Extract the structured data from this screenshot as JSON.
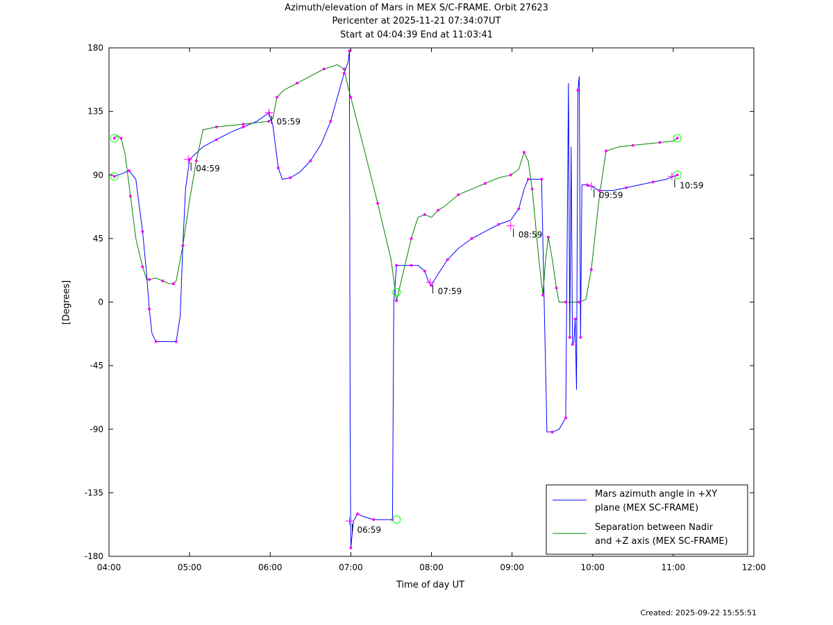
{
  "title": {
    "line1": "Azimuth/elevation of Mars in MEX S/C-FRAME.  Orbit 27623",
    "line2": "Pericenter at 2025-11-21 07:34:07UT",
    "line3": "Start at 04:04:39 End at 11:03:41"
  },
  "footer": {
    "created": "Created: 2025-09-22 15:55:51"
  },
  "colors": {
    "azimuth": "#0000ff",
    "separation": "#008000",
    "marker": "#ff00ff",
    "endpoint": "#00ff00"
  },
  "chart_data": {
    "type": "line",
    "xlabel": "Time of day UT",
    "ylabel": "[Degrees]",
    "xlim": [
      "04:00",
      "12:00"
    ],
    "ylim": [
      -180,
      180
    ],
    "x_ticks": [
      "04:00",
      "05:00",
      "06:00",
      "07:00",
      "08:00",
      "09:00",
      "10:00",
      "11:00",
      "12:00"
    ],
    "y_ticks": [
      "180",
      "135",
      "90",
      "45",
      "0",
      "-45",
      "-90",
      "-135",
      "-180"
    ],
    "grid": false,
    "legend_position": "bottom-right",
    "series": [
      {
        "name": "Mars azimuth angle in +XY plane (MEX SC-FRAME)",
        "legend_lines": [
          "Mars azimuth angle in +XY",
          "plane (MEX SC-FRAME)"
        ],
        "color": "#0000ff",
        "points": [
          [
            "04:04",
            89
          ],
          [
            "04:10",
            91
          ],
          [
            "04:15",
            93
          ],
          [
            "04:20",
            87
          ],
          [
            "04:25",
            50
          ],
          [
            "04:28",
            20
          ],
          [
            "04:30",
            -5
          ],
          [
            "04:32",
            -22
          ],
          [
            "04:35",
            -28
          ],
          [
            "04:45",
            -28
          ],
          [
            "04:50",
            -28
          ],
          [
            "04:53",
            -10
          ],
          [
            "04:55",
            40
          ],
          [
            "04:57",
            80
          ],
          [
            "05:00",
            101
          ],
          [
            "05:10",
            110
          ],
          [
            "05:20",
            115
          ],
          [
            "05:30",
            120
          ],
          [
            "05:40",
            124
          ],
          [
            "05:50",
            128
          ],
          [
            "05:59",
            134
          ],
          [
            "06:02",
            125
          ],
          [
            "06:06",
            95
          ],
          [
            "06:09",
            87
          ],
          [
            "06:15",
            88
          ],
          [
            "06:22",
            92
          ],
          [
            "06:30",
            100
          ],
          [
            "06:38",
            112
          ],
          [
            "06:45",
            128
          ],
          [
            "06:50",
            145
          ],
          [
            "06:55",
            162
          ],
          [
            "06:58",
            170
          ],
          [
            "06:59",
            178
          ],
          [
            "06:59:30",
            -88
          ],
          [
            "07:00",
            -174
          ],
          [
            "07:02",
            -155
          ],
          [
            "07:05",
            -150
          ],
          [
            "07:10",
            -152
          ],
          [
            "07:17",
            -154
          ],
          [
            "07:25",
            -154
          ],
          [
            "07:31",
            -154
          ],
          [
            "07:32",
            0
          ],
          [
            "07:34",
            26
          ],
          [
            "07:40",
            26
          ],
          [
            "07:45",
            26
          ],
          [
            "07:50",
            26
          ],
          [
            "07:55",
            22
          ],
          [
            "07:58",
            14
          ],
          [
            "08:00",
            12
          ],
          [
            "08:05",
            20
          ],
          [
            "08:12",
            30
          ],
          [
            "08:20",
            38
          ],
          [
            "08:30",
            45
          ],
          [
            "08:40",
            50
          ],
          [
            "08:50",
            55
          ],
          [
            "08:59",
            58
          ],
          [
            "09:05",
            66
          ],
          [
            "09:09",
            80
          ],
          [
            "09:12",
            87
          ],
          [
            "09:20",
            87
          ],
          [
            "09:22",
            87
          ],
          [
            "09:26",
            -92
          ],
          [
            "09:30",
            -92
          ],
          [
            "09:35",
            -90
          ],
          [
            "09:40",
            -82
          ],
          [
            "09:42",
            155
          ],
          [
            "09:43",
            -25
          ],
          [
            "09:44",
            110
          ],
          [
            "09:45",
            -30
          ],
          [
            "09:46",
            -28
          ],
          [
            "09:47",
            -12
          ],
          [
            "09:48",
            -62
          ],
          [
            "09:49",
            150
          ],
          [
            "09:50",
            160
          ],
          [
            "09:51",
            -25
          ],
          [
            "09:52",
            83
          ],
          [
            "09:56",
            83
          ],
          [
            "09:59",
            82
          ],
          [
            "10:05",
            79
          ],
          [
            "10:15",
            79
          ],
          [
            "10:25",
            81
          ],
          [
            "10:35",
            83
          ],
          [
            "10:45",
            85
          ],
          [
            "10:55",
            87
          ],
          [
            "11:03",
            90
          ]
        ]
      },
      {
        "name": "Separation between Nadir and +Z axis (MEX SC-FRAME)",
        "legend_lines": [
          "Separation between Nadir",
          "and +Z axis (MEX SC-FRAME)"
        ],
        "color": "#008000",
        "points": [
          [
            "04:04",
            116
          ],
          [
            "04:06",
            118
          ],
          [
            "04:09",
            116
          ],
          [
            "04:12",
            105
          ],
          [
            "04:16",
            75
          ],
          [
            "04:20",
            45
          ],
          [
            "04:25",
            25
          ],
          [
            "04:28",
            16
          ],
          [
            "04:30",
            16
          ],
          [
            "04:35",
            17
          ],
          [
            "04:40",
            15
          ],
          [
            "04:45",
            13
          ],
          [
            "04:48",
            13
          ],
          [
            "04:50",
            15
          ],
          [
            "04:55",
            40
          ],
          [
            "05:00",
            72
          ],
          [
            "05:05",
            100
          ],
          [
            "05:10",
            122
          ],
          [
            "05:20",
            124
          ],
          [
            "05:30",
            125
          ],
          [
            "05:40",
            126
          ],
          [
            "05:50",
            127
          ],
          [
            "05:59",
            128
          ],
          [
            "06:02",
            130
          ],
          [
            "06:05",
            145
          ],
          [
            "06:10",
            150
          ],
          [
            "06:20",
            155
          ],
          [
            "06:30",
            160
          ],
          [
            "06:40",
            165
          ],
          [
            "06:50",
            168
          ],
          [
            "06:55",
            165
          ],
          [
            "06:58",
            152
          ],
          [
            "07:00",
            145
          ],
          [
            "07:10",
            108
          ],
          [
            "07:20",
            70
          ],
          [
            "07:30",
            30
          ],
          [
            "07:34",
            1
          ],
          [
            "07:40",
            25
          ],
          [
            "07:45",
            45
          ],
          [
            "07:50",
            60
          ],
          [
            "07:55",
            62
          ],
          [
            "08:00",
            60
          ],
          [
            "08:05",
            65
          ],
          [
            "08:10",
            68
          ],
          [
            "08:20",
            76
          ],
          [
            "08:30",
            80
          ],
          [
            "08:40",
            84
          ],
          [
            "08:50",
            88
          ],
          [
            "08:59",
            90
          ],
          [
            "09:05",
            94
          ],
          [
            "09:09",
            106
          ],
          [
            "09:12",
            100
          ],
          [
            "09:15",
            80
          ],
          [
            "09:20",
            30
          ],
          [
            "09:23",
            5
          ],
          [
            "09:25",
            30
          ],
          [
            "09:27",
            46
          ],
          [
            "09:30",
            30
          ],
          [
            "09:33",
            10
          ],
          [
            "09:35",
            0
          ],
          [
            "09:40",
            0
          ],
          [
            "09:45",
            0
          ],
          [
            "09:50",
            0
          ],
          [
            "09:55",
            2
          ],
          [
            "09:59",
            23
          ],
          [
            "10:05",
            75
          ],
          [
            "10:10",
            107
          ],
          [
            "10:20",
            110
          ],
          [
            "10:30",
            111
          ],
          [
            "10:40",
            112
          ],
          [
            "10:50",
            113
          ],
          [
            "11:00",
            114
          ],
          [
            "11:03",
            116
          ]
        ]
      }
    ],
    "hour_labels": [
      {
        "text": "04:59",
        "x": "04:59",
        "y": 101,
        "series": "azimuth"
      },
      {
        "text": "05:59",
        "x": "05:59",
        "y": 134,
        "series": "azimuth"
      },
      {
        "text": "06:59",
        "x": "06:59",
        "y": -155,
        "series": "azimuth"
      },
      {
        "text": "07:59",
        "x": "07:59",
        "y": 14,
        "series": "azimuth"
      },
      {
        "text": "08:59",
        "x": "08:59",
        "y": 54,
        "series": "azimuth"
      },
      {
        "text": "09:59",
        "x": "09:59",
        "y": 82,
        "series": "azimuth"
      },
      {
        "text": "10:59",
        "x": "10:59",
        "y": 89,
        "series": "azimuth"
      }
    ],
    "endpoints": [
      {
        "x": "04:04",
        "y": 89
      },
      {
        "x": "04:04",
        "y": 116
      },
      {
        "x": "07:34",
        "y": 7
      },
      {
        "x": "07:34",
        "y": -154
      },
      {
        "x": "11:03",
        "y": 90
      },
      {
        "x": "11:03",
        "y": 116
      }
    ]
  }
}
